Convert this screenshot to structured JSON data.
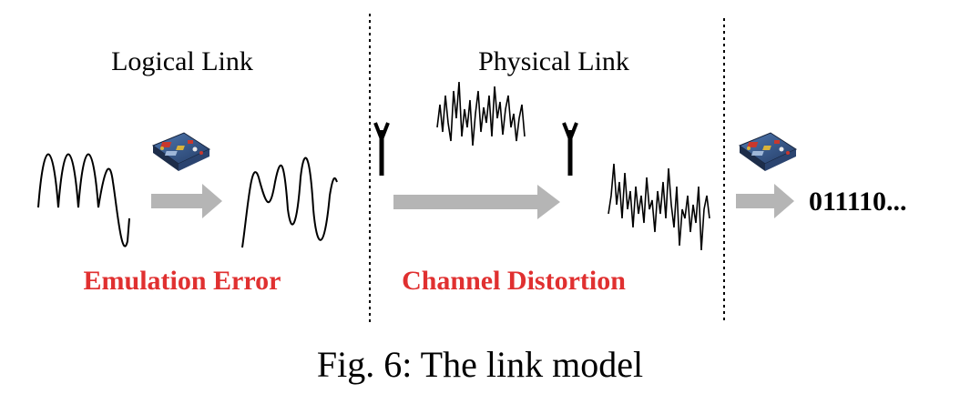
{
  "headings": {
    "logical": "Logical Link",
    "physical": "Physical Link"
  },
  "labels": {
    "emulation_error": "Emulation Error",
    "channel_distortion": "Channel Distortion"
  },
  "output_bits": "011110...",
  "caption": "Fig. 6: The link model",
  "colors": {
    "error_label": "#e03030",
    "arrow": "#b5b5b5",
    "ink": "#000000",
    "board_blue": "#3a5f95",
    "board_dark": "#1d2d4a",
    "board_red": "#c8382d",
    "board_yellow": "#d9b33a"
  },
  "icons": [
    "dev-board-icon",
    "antenna-icon"
  ]
}
